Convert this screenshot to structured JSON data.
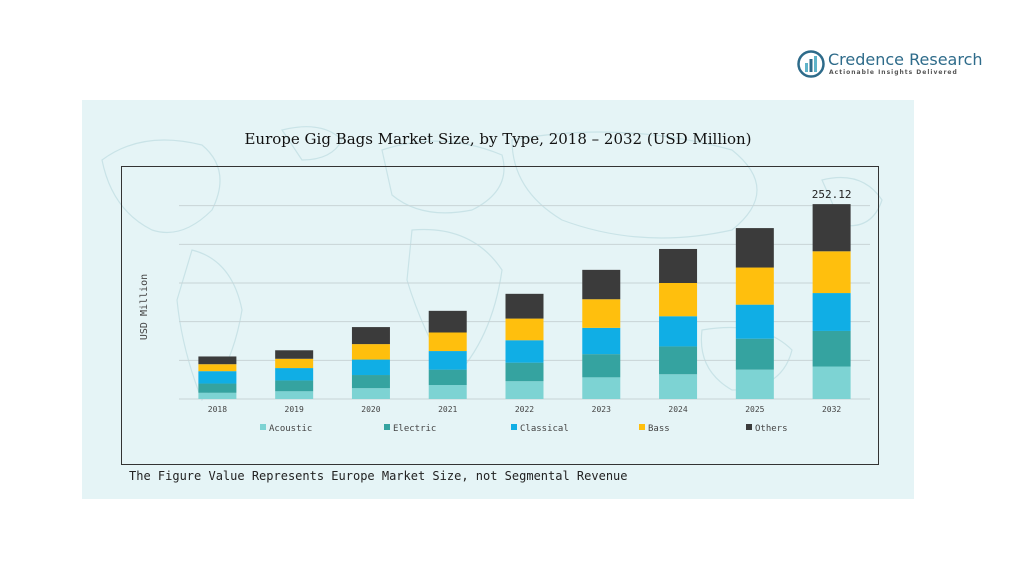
{
  "brand": {
    "name": "Credence Research",
    "tagline": "Actionable Insights Delivered",
    "colors": {
      "dark": "#2e6b8a",
      "light": "#5fb3c9"
    }
  },
  "footnote": "The Figure Value Represents Europe Market Size, not Segmental Revenue",
  "chart_data": {
    "type": "bar",
    "stacked": true,
    "title": "Europe Gig Bags Market Size, by Type, 2018 – 2032 (USD Million)",
    "xlabel": "",
    "ylabel": "USD Million",
    "ylim": [
      0,
      300
    ],
    "grid": true,
    "legend_position": "bottom",
    "categories": [
      "2018",
      "2019",
      "2020",
      "2021",
      "2022",
      "2023",
      "2024",
      "2025",
      "2032"
    ],
    "series": [
      {
        "name": "Acoustic",
        "color": "#7dd3d3",
        "values": [
          8,
          10,
          14,
          18,
          23,
          28,
          32,
          38,
          42
        ]
      },
      {
        "name": "Electric",
        "color": "#35a3a0",
        "values": [
          12,
          14,
          17,
          20,
          24,
          30,
          36,
          40,
          46
        ]
      },
      {
        "name": "Classical",
        "color": "#10aee5",
        "values": [
          16,
          16,
          20,
          24,
          29,
          34,
          39,
          44,
          49
        ]
      },
      {
        "name": "Bass",
        "color": "#ffbf0d",
        "values": [
          9,
          12,
          20,
          24,
          28,
          37,
          43,
          48,
          54
        ]
      },
      {
        "name": "Others",
        "color": "#3b3b3b",
        "values": [
          10,
          11,
          22,
          28,
          32,
          38,
          44,
          51,
          61
        ]
      }
    ],
    "annotations": [
      {
        "category": "2032",
        "text": "252.12"
      }
    ]
  }
}
